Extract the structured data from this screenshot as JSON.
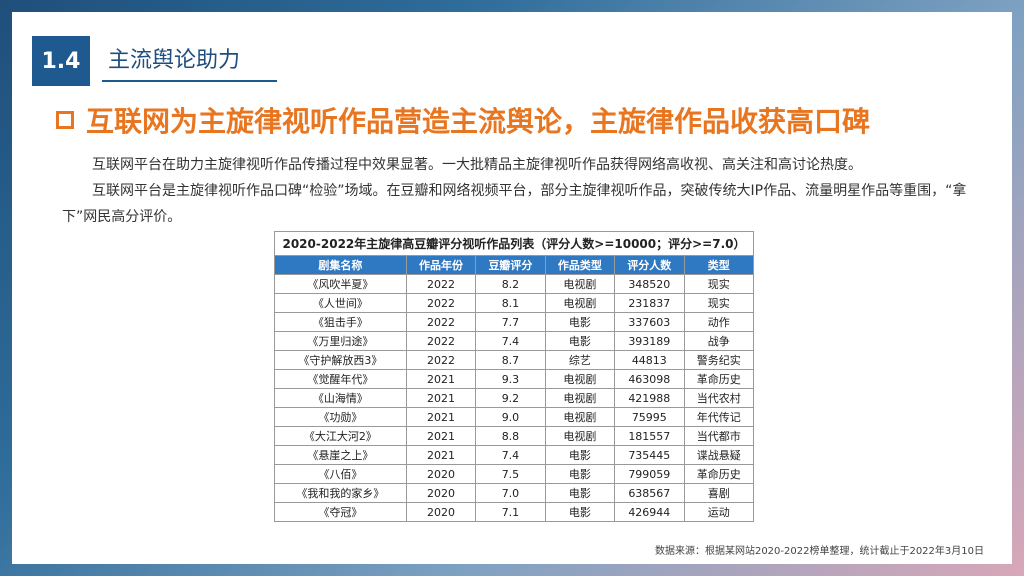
{
  "section": {
    "number": "1.4",
    "title": "主流舆论助力"
  },
  "headline": "互联网为主旋律视听作品营造主流舆论，主旋律作品收获高口碑",
  "paragraphs": [
    "互联网平台在助力主旋律视听作品传播过程中效果显著。一大批精品主旋律视听作品获得网络高收视、高关注和高讨论热度。",
    "互联网平台是主旋律视听作品口碑“检验”场域。在豆瓣和网络视频平台，部分主旋律视听作品，突破传统大IP作品、流量明星作品等重围，“拿下”网民高分评价。"
  ],
  "table": {
    "caption": "2020-2022年主旋律高豆瓣评分视听作品列表（评分人数>=10000；评分>=7.0）",
    "headers": [
      "剧集名称",
      "作品年份",
      "豆瓣评分",
      "作品类型",
      "评分人数",
      "类型"
    ],
    "rows": [
      [
        "《风吹半夏》",
        "2022",
        "8.2",
        "电视剧",
        "348520",
        "现实"
      ],
      [
        "《人世间》",
        "2022",
        "8.1",
        "电视剧",
        "231837",
        "现实"
      ],
      [
        "《狙击手》",
        "2022",
        "7.7",
        "电影",
        "337603",
        "动作"
      ],
      [
        "《万里归途》",
        "2022",
        "7.4",
        "电影",
        "393189",
        "战争"
      ],
      [
        "《守护解放西3》",
        "2022",
        "8.7",
        "综艺",
        "44813",
        "警务纪实"
      ],
      [
        "《觉醒年代》",
        "2021",
        "9.3",
        "电视剧",
        "463098",
        "革命历史"
      ],
      [
        "《山海情》",
        "2021",
        "9.2",
        "电视剧",
        "421988",
        "当代农村"
      ],
      [
        "《功勋》",
        "2021",
        "9.0",
        "电视剧",
        "75995",
        "年代传记"
      ],
      [
        "《大江大河2》",
        "2021",
        "8.8",
        "电视剧",
        "181557",
        "当代都市"
      ],
      [
        "《悬崖之上》",
        "2021",
        "7.4",
        "电影",
        "735445",
        "谍战悬疑"
      ],
      [
        "《八佰》",
        "2020",
        "7.5",
        "电影",
        "799059",
        "革命历史"
      ],
      [
        "《我和我的家乡》",
        "2020",
        "7.0",
        "电影",
        "638567",
        "喜剧"
      ],
      [
        "《夺冠》",
        "2020",
        "7.1",
        "电影",
        "426944",
        "运动"
      ]
    ]
  },
  "source": "数据来源：根据某网站2020-2022榜单整理，统计截止于2022年3月10日",
  "colors": {
    "accent": "#e8751f",
    "brand": "#1e5a8f",
    "table_header": "#2f78c2"
  }
}
